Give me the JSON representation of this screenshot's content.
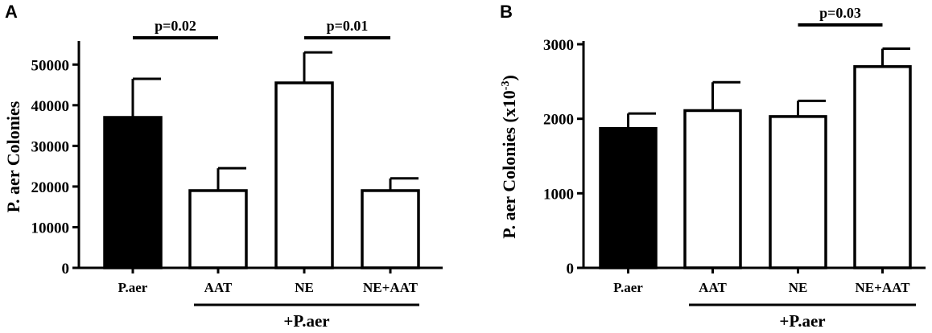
{
  "chart_data": [
    {
      "panel": "A",
      "type": "bar",
      "categories": [
        "P.aer",
        "AAT",
        "NE",
        "NE+AAT"
      ],
      "values": [
        37000,
        19000,
        45500,
        19000
      ],
      "errors": [
        9500,
        5500,
        7500,
        3000
      ],
      "bar_fills": [
        "#000000",
        "#ffffff",
        "#ffffff",
        "#ffffff"
      ],
      "ylabel": "P. aer Colonies",
      "ylim": [
        0,
        55000
      ],
      "yticks": [
        0,
        10000,
        20000,
        30000,
        40000,
        50000
      ],
      "group_label": "+P.aer",
      "comparisons": [
        {
          "from": 0,
          "to": 1,
          "label": "p=0.02"
        },
        {
          "from": 2,
          "to": 3,
          "label": "p=0.01"
        }
      ]
    },
    {
      "panel": "B",
      "type": "bar",
      "categories": [
        "P.aer",
        "AAT",
        "NE",
        "NE+AAT"
      ],
      "values": [
        1870,
        2110,
        2030,
        2700
      ],
      "errors": [
        200,
        380,
        210,
        240
      ],
      "bar_fills": [
        "#000000",
        "#ffffff",
        "#ffffff",
        "#ffffff"
      ],
      "ylabel": "P. aer Colonies (x10",
      "ylabel_superscript": "-3",
      "ylabel_suffix": ")",
      "ylim": [
        0,
        3000
      ],
      "yticks": [
        0,
        1000,
        2000,
        3000
      ],
      "group_label": "+P.aer",
      "comparisons": [
        {
          "from": 2,
          "to": 3,
          "label": "p=0.03"
        }
      ]
    }
  ]
}
